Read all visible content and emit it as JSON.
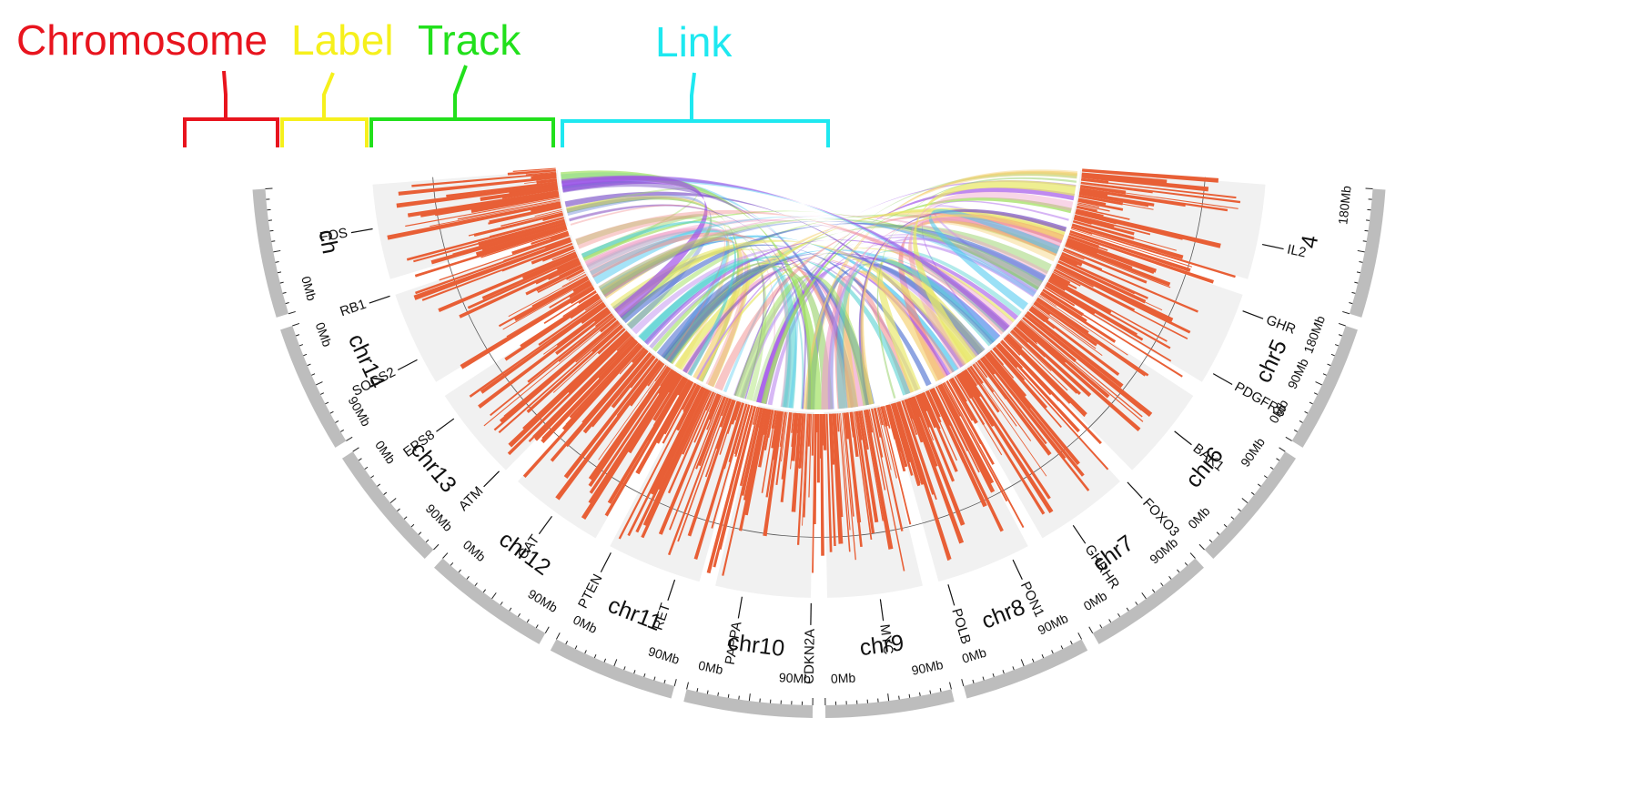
{
  "legend": [
    {
      "label": "Chromosome",
      "color": "#e8141e"
    },
    {
      "label": "Label",
      "color": "#f6f01c"
    },
    {
      "label": "Track",
      "color": "#22e01c"
    },
    {
      "label": "Link",
      "color": "#1ee8f0"
    }
  ],
  "chromosomes": [
    {
      "id": "ch",
      "label": "ch",
      "ticks": [
        "0Mb"
      ]
    },
    {
      "id": "chr14",
      "label": "chr14",
      "ticks": [
        "90Mb",
        "0Mb"
      ]
    },
    {
      "id": "chr13",
      "label": "chr13",
      "ticks": [
        "90Mb",
        "0Mb"
      ]
    },
    {
      "id": "chr12",
      "label": "chr12",
      "ticks": [
        "90Mb",
        "0Mb"
      ]
    },
    {
      "id": "chr11",
      "label": "chr11",
      "ticks": [
        "90Mb",
        "0Mb"
      ]
    },
    {
      "id": "chr10",
      "label": "chr10",
      "ticks": [
        "90Mb",
        "0Mb"
      ]
    },
    {
      "id": "chr9",
      "label": "chr9",
      "ticks": [
        "90Mb",
        "0Mb"
      ]
    },
    {
      "id": "chr8",
      "label": "chr8",
      "ticks": [
        "90Mb",
        "0Mb"
      ]
    },
    {
      "id": "chr7",
      "label": "chr7",
      "ticks": [
        "90Mb",
        "0Mb"
      ]
    },
    {
      "id": "chr6",
      "label": "chr6",
      "ticks": [
        "90Mb",
        "0Mb"
      ]
    },
    {
      "id": "chr5",
      "label": "chr5",
      "ticks": [
        "180Mb",
        "90Mb",
        "0Mb"
      ]
    },
    {
      "id": "chr4",
      "label": "4",
      "ticks": [
        "180Mb"
      ]
    }
  ],
  "genes": [
    "FOS",
    "RB1",
    "SOCS2",
    "EPS8",
    "ATM",
    "CAT",
    "PTEN",
    "RET",
    "PAPPA",
    "CDKN2A",
    "MYC",
    "POLB",
    "PON1",
    "GHRHR",
    "FOXO3",
    "BAK1",
    "PDGFRB",
    "GHR",
    "IL2"
  ],
  "colors": {
    "chromosome_band": "#bdbdbd",
    "track_background": "#f1f1f1",
    "track_bars": "#e85f36",
    "reference_circle": "#555555",
    "link_palette": [
      "#7b52c8",
      "#4ec8f0",
      "#f5d070",
      "#a0e060",
      "#f08080",
      "#50d0d0",
      "#c090f0",
      "#9bd36f",
      "#f0a0c8",
      "#4b6dd1",
      "#e8e86a",
      "#a050e8"
    ]
  }
}
